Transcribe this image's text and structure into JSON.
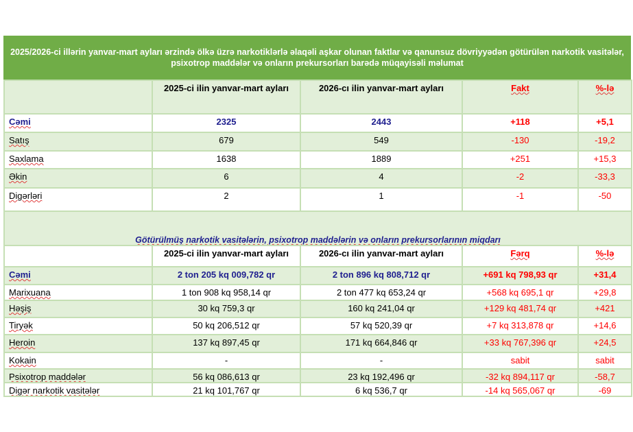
{
  "title": "2025/2026-ci illərin yanvar-mart ayları ərzində ölkə üzrə narkotiklərlə əlaqəli aşkar olunan faktlar və qanunsuz dövriyyədən götürülən narkotik vasitələr, psixotrop maddələr və onların prekursorları barədə müqayisəli məlumat",
  "table1": {
    "headers": [
      "",
      "2025-ci ilin yanvar-mart ayları",
      "2026-cı ilin yanvar-mart ayları",
      "Fakt",
      "%-lə"
    ],
    "rows": [
      [
        "Cəmi",
        "2325",
        "2443",
        "+118",
        "+5,1"
      ],
      [
        "Satış",
        "679",
        "549",
        "-130",
        "-19,2"
      ],
      [
        "Saxlama",
        "1638",
        "1889",
        "+251",
        "+15,3"
      ],
      [
        "Əkin",
        "6",
        "4",
        "-2",
        "-33,3"
      ],
      [
        "Digərləri",
        "2",
        "1",
        "-1",
        "-50"
      ]
    ]
  },
  "section_title": "Götürülmüş narkotik vasitələrin, psixotrop maddələrin və onların prekursorlarının miqdarı",
  "table2": {
    "headers": [
      "",
      "2025-ci ilin yanvar-mart ayları",
      "2026-cı ilin yanvar-mart ayları",
      "Fərq",
      "%-lə"
    ],
    "rows": [
      [
        "Cəmi",
        "2 ton 205 kq 009,782 qr",
        "2 ton 896 kq 808,712 qr",
        "+691 kq 798,93 qr",
        "+31,4"
      ],
      [
        "Marixuana",
        "1 ton 908 kq 958,14 qr",
        "2 ton 477 kq 653,24 qr",
        "+568 kq 695,1 qr",
        "+29,8"
      ],
      [
        "Həşiş",
        "30 kq 759,3 qr",
        "160 kq 241,04 qr",
        "+129 kq 481,74 qr",
        "+421"
      ],
      [
        "Tiryək",
        "50 kq 206,512 qr",
        "57 kq 520,39 qr",
        "+7 kq 313,878 qr",
        "+14,6"
      ],
      [
        "Heroin",
        "137 kq 897,45 qr",
        "171 kq 664,846 qr",
        "+33 kq 767,396 qr",
        "+24,5"
      ],
      [
        "Kokain",
        "-",
        "-",
        "sabit",
        "sabit"
      ],
      [
        "Psixotrop maddələr",
        "56 kq 086,613 qr",
        "23 kq 192,496 qr",
        "-32 kq 894,117 qr",
        "-58,7"
      ],
      [
        "Digər narkotik vasitələr",
        "21 kq 101,767 qr",
        "6 kq 536,7 qr",
        "-14 kq 565,067 qr",
        "-69"
      ]
    ]
  },
  "colors": {
    "title_bg": "#70ad47",
    "light_green": "#e2efd9",
    "red": "#ff0000",
    "blue": "#1f1f8f"
  }
}
